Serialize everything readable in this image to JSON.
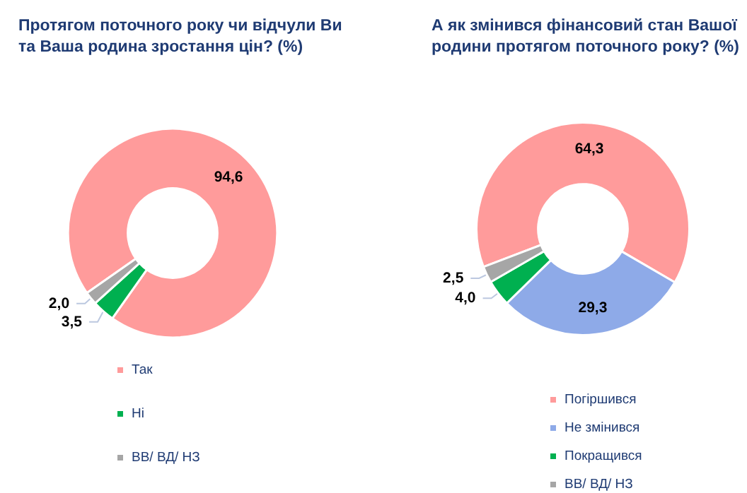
{
  "chart_data": [
    {
      "type": "donut",
      "title": "Протягом поточного року чи відчули Ви\nта Ваша родина зростання цін? (%)",
      "categories": [
        "Так",
        "Ні",
        "ВВ/ ВД/ НЗ"
      ],
      "values": [
        94.6,
        3.5,
        2.0
      ],
      "colors": [
        "#ff9b9b",
        "#00b050",
        "#a6a6a6"
      ],
      "value_labels": [
        "94,6",
        "3,5",
        "2,0"
      ],
      "legend": "bottom"
    },
    {
      "type": "donut",
      "title": "А як змінився фінансовий стан Вашої\nродини протягом поточного року? (%)",
      "categories": [
        "Погіршився",
        "Не змінився",
        "Покращився",
        "ВВ/ ВД/ НЗ"
      ],
      "values": [
        64.3,
        29.3,
        4.0,
        2.5
      ],
      "colors": [
        "#ff9b9b",
        "#8eaae8",
        "#00b050",
        "#a6a6a6"
      ],
      "value_labels": [
        "64,3",
        "29,3",
        "4,0",
        "2,5"
      ],
      "legend": "bottom"
    }
  ]
}
